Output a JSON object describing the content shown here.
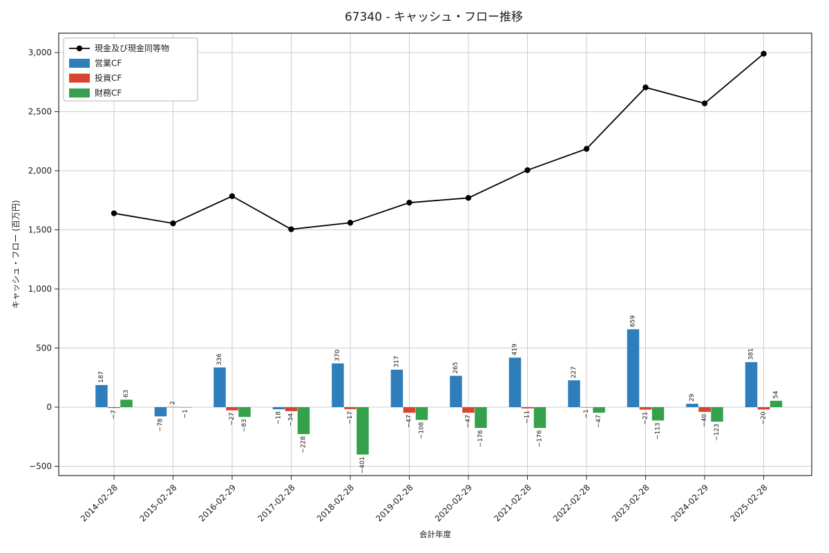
{
  "page": {
    "title": "67340 - キャッシュ・フロー推移"
  },
  "chart_data": {
    "type": "bar+line",
    "title": "67340 - キャッシュ・フロー推移",
    "xlabel": "会計年度",
    "ylabel": "キャッシュ・フロー (百万円)",
    "categories": [
      "2014-02-28",
      "2015-02-28",
      "2016-02-29",
      "2017-02-28",
      "2018-02-28",
      "2019-02-28",
      "2020-02-29",
      "2021-02-28",
      "2022-02-28",
      "2023-02-28",
      "2024-02-29",
      "2025-02-28"
    ],
    "yticks": [
      -500,
      0,
      500,
      1000,
      1500,
      2000,
      2500,
      3000
    ],
    "ytick_labels": [
      "−500",
      "0",
      "500",
      "1,000",
      "1,500",
      "2,000",
      "2,500",
      "3,000"
    ],
    "ylim": [
      -570,
      3090
    ],
    "grid": true,
    "legend_position": "upper left",
    "series": [
      {
        "name": "現金及び現金同等物",
        "type": "line",
        "color": "#000000",
        "values": [
          1640,
          1555,
          1785,
          1505,
          1560,
          1730,
          1770,
          2005,
          2185,
          2705,
          2570,
          2990
        ]
      },
      {
        "name": "営業CF",
        "type": "bar",
        "color": "#2e7ebc",
        "values": [
          187,
          -78,
          336,
          -18,
          370,
          317,
          265,
          419,
          227,
          659,
          29,
          381
        ]
      },
      {
        "name": "投資CF",
        "type": "bar",
        "color": "#d9432f",
        "values": [
          -7,
          2,
          -27,
          -34,
          -17,
          -47,
          -47,
          -11,
          -1,
          -21,
          -40,
          -20
        ]
      },
      {
        "name": "財務CF",
        "type": "bar",
        "color": "#35a14c",
        "values": [
          63,
          -1,
          -83,
          -228,
          -401,
          -108,
          -176,
          -176,
          -47,
          -113,
          -123,
          54
        ]
      }
    ]
  }
}
